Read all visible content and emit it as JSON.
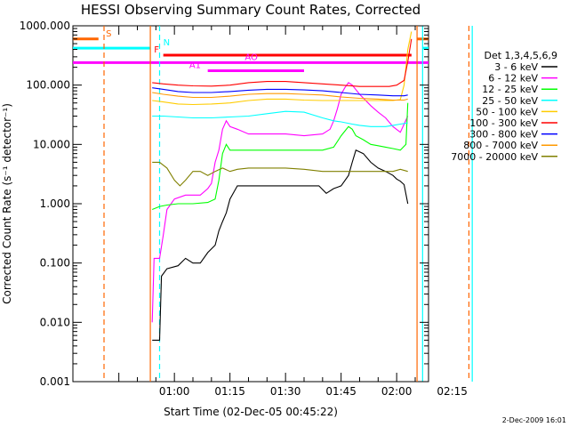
{
  "chart_data": {
    "type": "line",
    "title": "HESSI Observing Summary Count Rates, Corrected",
    "xlabel": "Start Time (02-Dec-05 00:45:22)",
    "ylabel": "Corrected Count Rate (s⁻¹ detector⁻¹)",
    "yscale": "log",
    "ylim": [
      0.001,
      1000
    ],
    "xlim_minutes": [
      -12.4,
      83.6
    ],
    "yticks": [
      "0.001",
      "0.010",
      "0.100",
      "1.000",
      "10.000",
      "100.000",
      "1000.000"
    ],
    "xticks": [
      {
        "t": 15,
        "label": "01:00"
      },
      {
        "t": 30,
        "label": "01:15"
      },
      {
        "t": 45,
        "label": "01:30"
      },
      {
        "t": 60,
        "label": "01:45"
      },
      {
        "t": 75,
        "label": "02:00"
      },
      {
        "t": 90,
        "label": "02:15"
      }
    ],
    "legend_title": "Det 1,3,4,5,6,9",
    "legend_position": "right",
    "series": [
      {
        "name": "3 - 6 keV",
        "color": "#000000",
        "x": [
          9,
          11,
          11.5,
          13,
          16,
          18,
          20,
          22,
          24,
          26,
          27,
          28,
          29,
          30,
          32,
          35,
          40,
          45,
          50,
          53,
          54,
          56,
          58,
          60,
          62,
          63,
          64,
          66,
          68,
          70,
          72,
          74,
          75,
          76,
          77,
          78
        ],
        "y": [
          0.005,
          0.005,
          0.06,
          0.08,
          0.09,
          0.12,
          0.1,
          0.1,
          0.15,
          0.2,
          0.35,
          0.5,
          0.7,
          1.2,
          2.0,
          2.0,
          2.0,
          2.0,
          2.0,
          2.0,
          2.0,
          1.5,
          1.8,
          2.0,
          3.0,
          5.0,
          8.0,
          7.0,
          5.0,
          4.0,
          3.5,
          3.0,
          2.6,
          2.4,
          2.1,
          1.0
        ]
      },
      {
        "name": "6 - 12 keV",
        "color": "#ff00ff",
        "x": [
          9,
          9.5,
          11,
          12,
          13,
          15,
          18,
          20,
          22,
          24,
          25,
          26,
          27,
          28,
          29,
          30,
          32,
          35,
          40,
          45,
          50,
          55,
          57,
          58,
          59,
          60,
          61,
          62,
          63,
          65,
          68,
          70,
          72,
          74,
          76,
          78
        ],
        "y": [
          0.01,
          0.12,
          0.12,
          0.3,
          0.8,
          1.2,
          1.4,
          1.4,
          1.4,
          1.8,
          2.2,
          5.0,
          8.0,
          18,
          25,
          20,
          18,
          15,
          15,
          15,
          14,
          15,
          18,
          25,
          40,
          70,
          90,
          110,
          100,
          70,
          45,
          35,
          28,
          20,
          16,
          30
        ]
      },
      {
        "name": "12 - 25 keV",
        "color": "#00ff00",
        "x": [
          9,
          11,
          13,
          16,
          20,
          24,
          26,
          27,
          28,
          29,
          30,
          32,
          35,
          40,
          45,
          50,
          55,
          58,
          60,
          62,
          63,
          64,
          66,
          68,
          70,
          72,
          74,
          76,
          77.5,
          78
        ],
        "y": [
          0.8,
          0.9,
          0.95,
          1.0,
          1.0,
          1.05,
          1.2,
          2.5,
          7.0,
          10,
          8.0,
          8.0,
          8.0,
          8.0,
          8.0,
          8.0,
          8.0,
          9.0,
          14,
          20,
          18,
          14,
          12,
          10,
          9.5,
          9.0,
          8.5,
          8.0,
          10,
          50
        ]
      },
      {
        "name": "25 - 50 keV",
        "color": "#00ffff",
        "x": [
          9,
          12,
          16,
          20,
          25,
          30,
          35,
          40,
          45,
          50,
          55,
          58,
          60,
          63,
          65,
          68,
          70,
          72,
          74,
          76,
          78
        ],
        "y": [
          30,
          30,
          29,
          28,
          28,
          29,
          30,
          33,
          36,
          35,
          28,
          25,
          24,
          22,
          21,
          20,
          20,
          20,
          21,
          22,
          23
        ]
      },
      {
        "name": "50 - 100 keV",
        "color": "#ffcc00",
        "x": [
          9,
          12,
          16,
          20,
          25,
          30,
          35,
          40,
          45,
          50,
          55,
          60,
          65,
          70,
          74,
          76,
          77,
          78,
          79
        ],
        "y": [
          55,
          52,
          48,
          47,
          48,
          50,
          55,
          58,
          58,
          56,
          55,
          55,
          55,
          55,
          55,
          57,
          100,
          400,
          800
        ]
      },
      {
        "name": "100 - 300 keV",
        "color": "#ff0000",
        "x": [
          9,
          12,
          16,
          20,
          25,
          30,
          35,
          40,
          45,
          50,
          55,
          60,
          65,
          70,
          73,
          75,
          77,
          78,
          79
        ],
        "y": [
          110,
          105,
          100,
          97,
          96,
          100,
          110,
          115,
          115,
          110,
          105,
          100,
          95,
          95,
          95,
          100,
          120,
          250,
          600
        ]
      },
      {
        "name": "300 - 800 keV",
        "color": "#0000ff",
        "x": [
          9,
          12,
          16,
          20,
          25,
          30,
          35,
          40,
          45,
          50,
          55,
          60,
          65,
          70,
          74,
          77,
          78
        ],
        "y": [
          90,
          85,
          78,
          75,
          75,
          78,
          82,
          85,
          85,
          83,
          80,
          75,
          70,
          68,
          66,
          66,
          68
        ]
      },
      {
        "name": "800 - 7000 keV",
        "color": "#ff9900",
        "x": [
          9,
          12,
          16,
          20,
          25,
          30,
          35,
          40,
          45,
          50,
          55,
          60,
          65,
          70,
          74,
          77,
          78
        ],
        "y": [
          75,
          70,
          65,
          62,
          62,
          65,
          70,
          72,
          72,
          70,
          68,
          63,
          60,
          58,
          56,
          56,
          58
        ]
      },
      {
        "name": "7000 - 20000 keV",
        "color": "#808000",
        "x": [
          9,
          11,
          13,
          15,
          16.5,
          18,
          20,
          22,
          24,
          26,
          28,
          30,
          32,
          35,
          40,
          45,
          50,
          55,
          60,
          65,
          70,
          74,
          76,
          78
        ],
        "y": [
          5.0,
          5.0,
          4.0,
          2.5,
          2.0,
          2.5,
          3.5,
          3.5,
          3.0,
          3.5,
          4.0,
          3.5,
          3.8,
          4.0,
          4.0,
          4.0,
          3.8,
          3.5,
          3.5,
          3.5,
          3.5,
          3.5,
          3.8,
          3.5
        ]
      }
    ],
    "flag_bars": [
      {
        "label": "S",
        "color": "#ff6600",
        "segments": [
          [
            -12.4,
            -5.5
          ],
          [
            80.5,
            88.5
          ]
        ],
        "y": 600
      },
      {
        "label": "N",
        "color": "#00ffff",
        "segments": [
          [
            -12.4,
            8.5
          ],
          [
            82,
            88.5
          ]
        ],
        "y": 420
      },
      {
        "label": "F",
        "color": "#ff0000",
        "segments": [
          [
            12,
            79
          ]
        ],
        "y": 320
      },
      {
        "label": "AO",
        "color": "#ff00ff",
        "segments": [
          [
            -12.4,
            88.5
          ]
        ],
        "y": 240
      },
      {
        "label": "A1",
        "color": "#ff00ff",
        "segments": [
          [
            24,
            50
          ]
        ],
        "y": 175
      }
    ],
    "markers": [
      {
        "t": -4,
        "color": "#ff6600",
        "style": "dashed"
      },
      {
        "t": 11,
        "color": "#00ffff",
        "style": "dashed"
      },
      {
        "t": 8.5,
        "color": "#ff6600",
        "style": "solid"
      },
      {
        "t": 80.5,
        "color": "#ff6600",
        "style": "solid"
      },
      {
        "t": 82,
        "color": "#00ffff",
        "style": "solid"
      },
      {
        "t": 94.5,
        "color": "#ff6600",
        "style": "dashed"
      },
      {
        "t": 95.4,
        "color": "#00ffff",
        "style": "solid"
      }
    ]
  },
  "timestamp": "2-Dec-2009 16:01"
}
